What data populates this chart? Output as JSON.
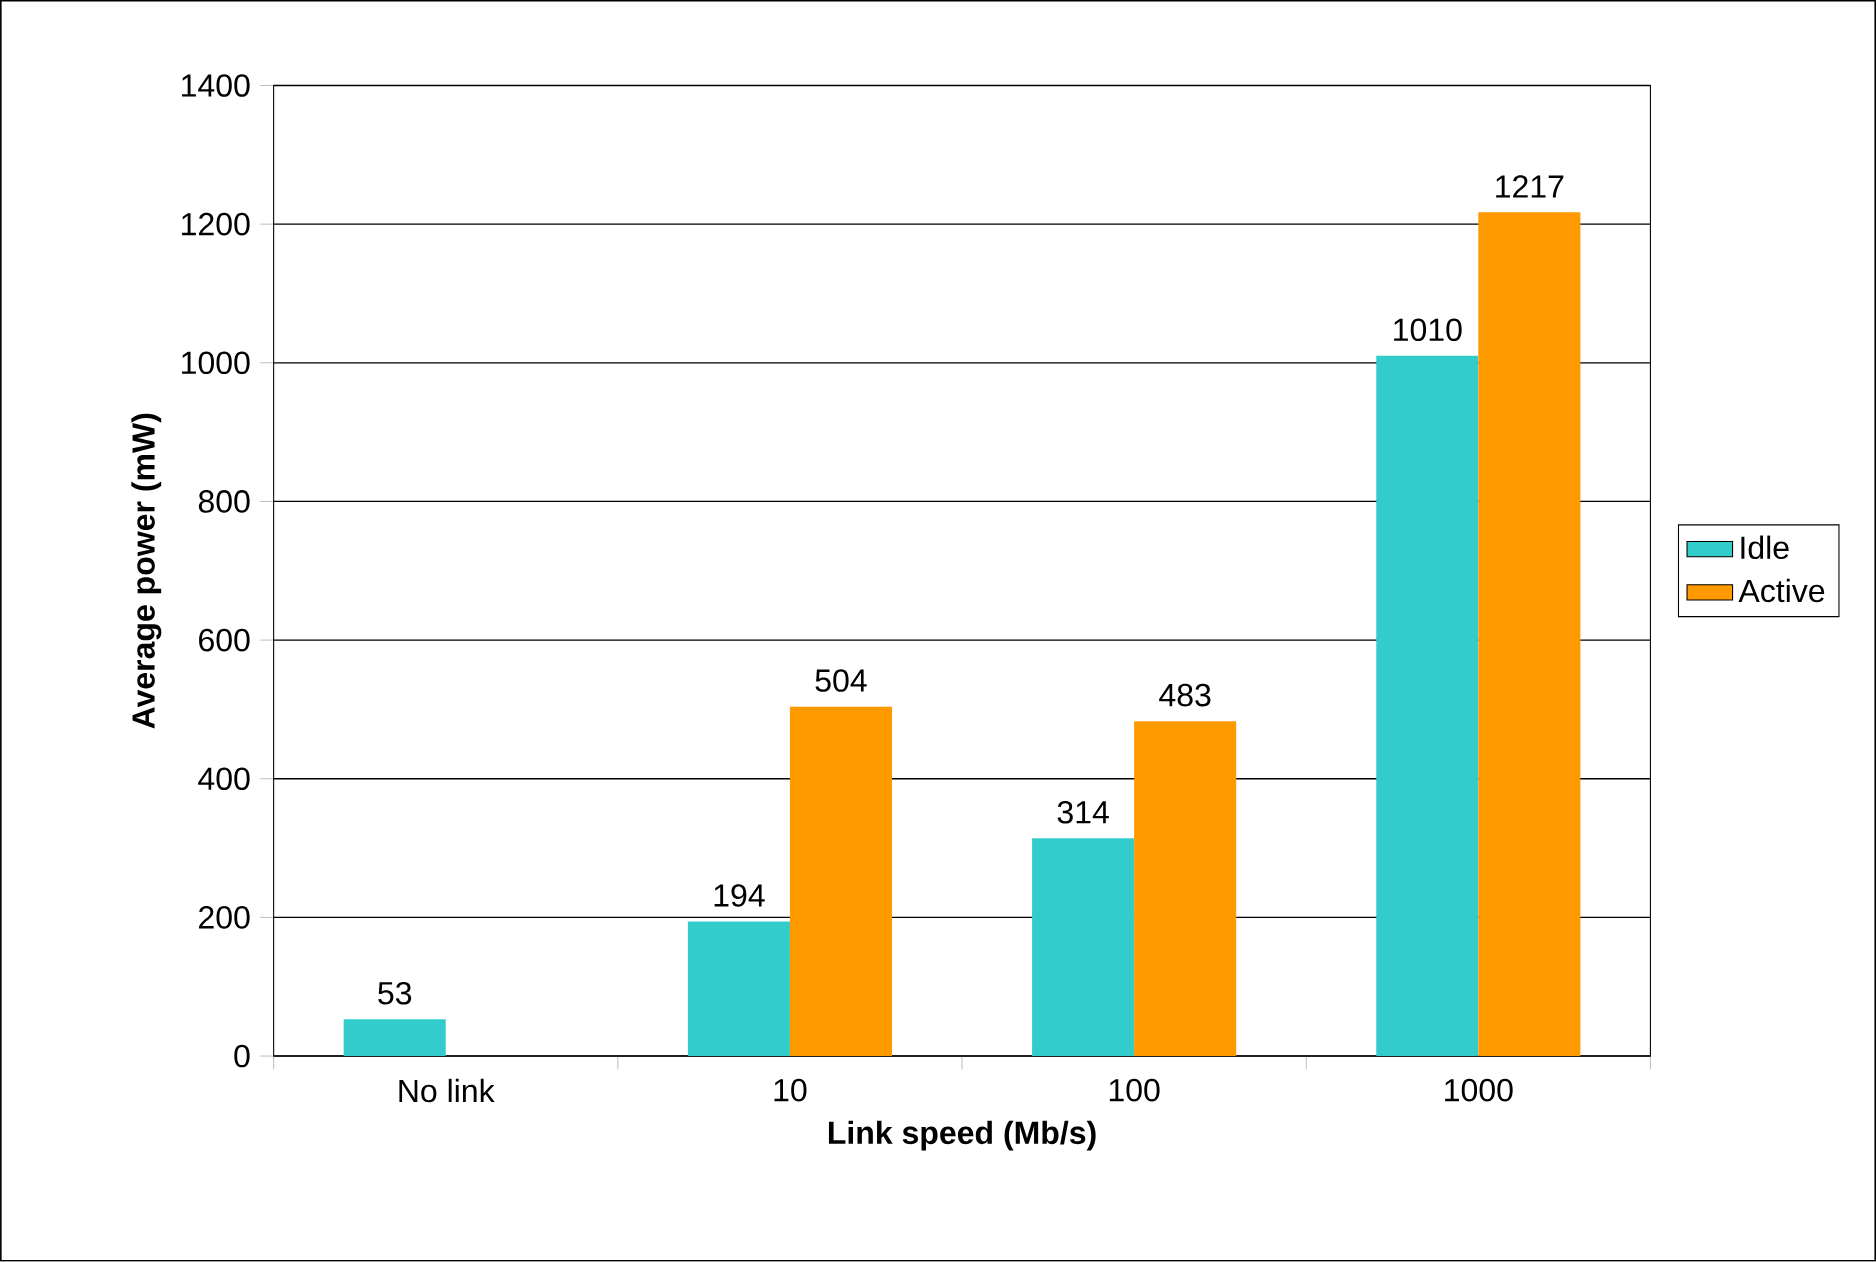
{
  "chart_data": {
    "type": "bar",
    "xlabel": "Link speed (Mb/s)",
    "ylabel": "Average power (mW)",
    "categories": [
      "No link",
      "10",
      "100",
      "1000"
    ],
    "series": [
      {
        "name": "Idle",
        "color": "#33cccc",
        "values": [
          53,
          194,
          314,
          1010
        ]
      },
      {
        "name": "Active",
        "color": "#ff9900",
        "values": [
          null,
          504,
          483,
          1217
        ]
      }
    ],
    "ylim": [
      0,
      1400
    ],
    "yticks": [
      0,
      200,
      400,
      600,
      800,
      1000,
      1200,
      1400
    ],
    "grid": "y",
    "legend": "right",
    "data_labels": true
  }
}
